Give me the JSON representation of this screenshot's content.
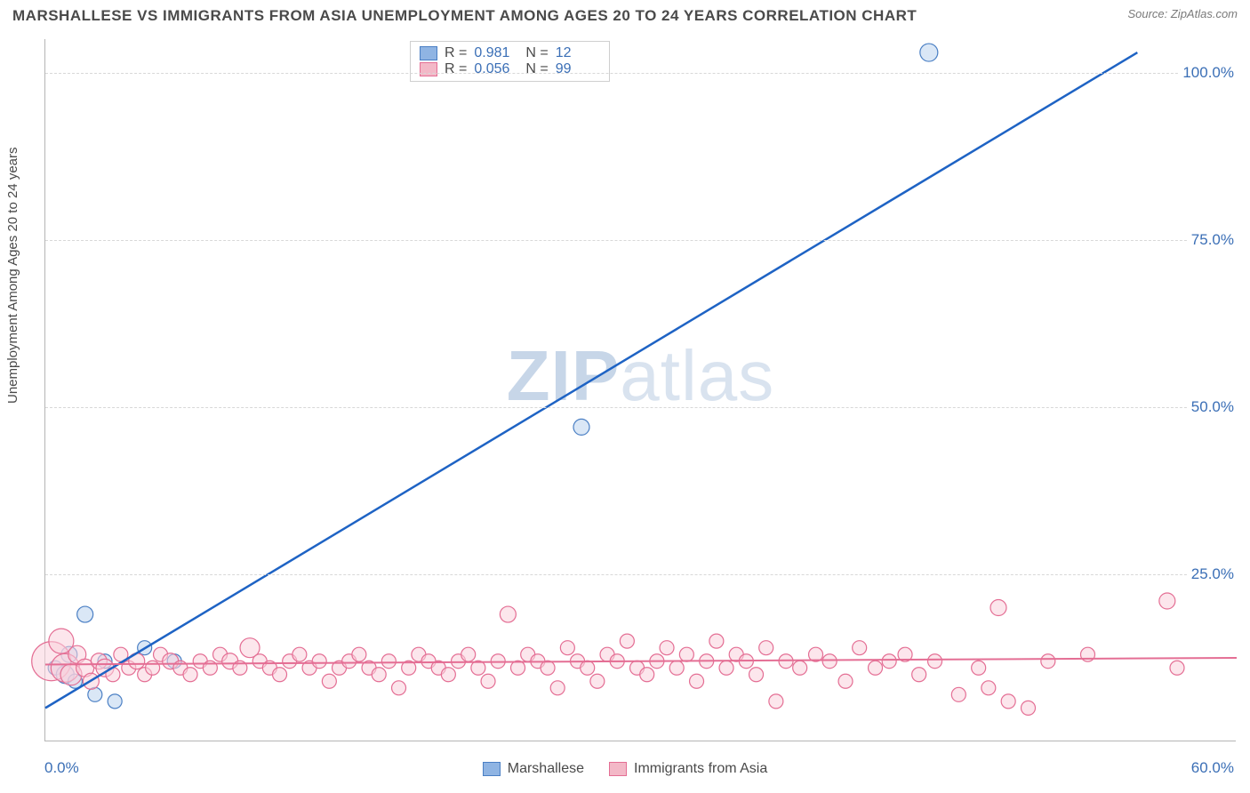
{
  "header": {
    "title": "MARSHALLESE VS IMMIGRANTS FROM ASIA UNEMPLOYMENT AMONG AGES 20 TO 24 YEARS CORRELATION CHART",
    "source": "Source: ZipAtlas.com"
  },
  "chart": {
    "type": "scatter",
    "ylabel": "Unemployment Among Ages 20 to 24 years",
    "background_color": "#ffffff",
    "grid_color": "#d8d8d8",
    "axis_color": "#b5b5b5",
    "tick_color": "#3b6fb6",
    "tick_fontsize": 17,
    "label_fontsize": 15,
    "xlim": [
      0,
      60
    ],
    "ylim": [
      0,
      105
    ],
    "xticks": [
      {
        "v": 0,
        "label": "0.0%"
      },
      {
        "v": 60,
        "label": "60.0%"
      }
    ],
    "yticks": [
      {
        "v": 25,
        "label": "25.0%"
      },
      {
        "v": 50,
        "label": "50.0%"
      },
      {
        "v": 75,
        "label": "75.0%"
      },
      {
        "v": 100,
        "label": "100.0%"
      }
    ],
    "watermark": {
      "prefix": "ZIP",
      "suffix": "atlas"
    },
    "stat_box": {
      "rows": [
        {
          "swatch": "#8fb4e3",
          "border": "#4a7fc4",
          "r_label": "R =",
          "r": "0.981",
          "n_label": "N =",
          "n": "12"
        },
        {
          "swatch": "#f3b8c7",
          "border": "#e46e94",
          "r_label": "R =",
          "r": "0.056",
          "n_label": "N =",
          "n": "99"
        }
      ]
    },
    "bottom_legend": [
      {
        "swatch": "#8fb4e3",
        "border": "#4a7fc4",
        "label": "Marshallese"
      },
      {
        "swatch": "#f3b8c7",
        "border": "#e46e94",
        "label": "Immigrants from Asia"
      }
    ],
    "series": [
      {
        "name": "Marshallese",
        "marker_fill": "#bcd3ef",
        "marker_stroke": "#4a7fc4",
        "line_color": "#1e63c4",
        "line_width": 2.5,
        "trend": {
          "x1": 0,
          "y1": 5,
          "x2": 55,
          "y2": 103
        },
        "points": [
          {
            "x": 0.5,
            "y": 11,
            "r": 8
          },
          {
            "x": 1.0,
            "y": 10,
            "r": 10
          },
          {
            "x": 1.2,
            "y": 13,
            "r": 9
          },
          {
            "x": 1.5,
            "y": 9,
            "r": 8
          },
          {
            "x": 2.0,
            "y": 19,
            "r": 9
          },
          {
            "x": 2.5,
            "y": 7,
            "r": 8
          },
          {
            "x": 3.0,
            "y": 12,
            "r": 8
          },
          {
            "x": 3.5,
            "y": 6,
            "r": 8
          },
          {
            "x": 5.0,
            "y": 14,
            "r": 8
          },
          {
            "x": 6.5,
            "y": 12,
            "r": 8
          },
          {
            "x": 27.0,
            "y": 47,
            "r": 9
          },
          {
            "x": 44.5,
            "y": 103,
            "r": 10
          }
        ]
      },
      {
        "name": "Immigrants from Asia",
        "marker_fill": "#f9d2dc",
        "marker_stroke": "#e46e94",
        "line_color": "#e46e94",
        "line_width": 2,
        "trend": {
          "x1": 0,
          "y1": 11.5,
          "x2": 60,
          "y2": 12.5
        },
        "points": [
          {
            "x": 0.3,
            "y": 12,
            "r": 22
          },
          {
            "x": 0.8,
            "y": 15,
            "r": 14
          },
          {
            "x": 1.0,
            "y": 11,
            "r": 16
          },
          {
            "x": 1.3,
            "y": 10,
            "r": 12
          },
          {
            "x": 1.6,
            "y": 13,
            "r": 10
          },
          {
            "x": 2.0,
            "y": 11,
            "r": 10
          },
          {
            "x": 2.3,
            "y": 9,
            "r": 9
          },
          {
            "x": 2.7,
            "y": 12,
            "r": 9
          },
          {
            "x": 3.0,
            "y": 11,
            "r": 10
          },
          {
            "x": 3.4,
            "y": 10,
            "r": 8
          },
          {
            "x": 3.8,
            "y": 13,
            "r": 8
          },
          {
            "x": 4.2,
            "y": 11,
            "r": 8
          },
          {
            "x": 4.6,
            "y": 12,
            "r": 9
          },
          {
            "x": 5.0,
            "y": 10,
            "r": 8
          },
          {
            "x": 5.4,
            "y": 11,
            "r": 8
          },
          {
            "x": 5.8,
            "y": 13,
            "r": 8
          },
          {
            "x": 6.3,
            "y": 12,
            "r": 9
          },
          {
            "x": 6.8,
            "y": 11,
            "r": 8
          },
          {
            "x": 7.3,
            "y": 10,
            "r": 8
          },
          {
            "x": 7.8,
            "y": 12,
            "r": 8
          },
          {
            "x": 8.3,
            "y": 11,
            "r": 8
          },
          {
            "x": 8.8,
            "y": 13,
            "r": 8
          },
          {
            "x": 9.3,
            "y": 12,
            "r": 9
          },
          {
            "x": 9.8,
            "y": 11,
            "r": 8
          },
          {
            "x": 10.3,
            "y": 14,
            "r": 11
          },
          {
            "x": 10.8,
            "y": 12,
            "r": 8
          },
          {
            "x": 11.3,
            "y": 11,
            "r": 8
          },
          {
            "x": 11.8,
            "y": 10,
            "r": 8
          },
          {
            "x": 12.3,
            "y": 12,
            "r": 8
          },
          {
            "x": 12.8,
            "y": 13,
            "r": 8
          },
          {
            "x": 13.3,
            "y": 11,
            "r": 8
          },
          {
            "x": 13.8,
            "y": 12,
            "r": 8
          },
          {
            "x": 14.3,
            "y": 9,
            "r": 8
          },
          {
            "x": 14.8,
            "y": 11,
            "r": 8
          },
          {
            "x": 15.3,
            "y": 12,
            "r": 8
          },
          {
            "x": 15.8,
            "y": 13,
            "r": 8
          },
          {
            "x": 16.3,
            "y": 11,
            "r": 8
          },
          {
            "x": 16.8,
            "y": 10,
            "r": 8
          },
          {
            "x": 17.3,
            "y": 12,
            "r": 8
          },
          {
            "x": 17.8,
            "y": 8,
            "r": 8
          },
          {
            "x": 18.3,
            "y": 11,
            "r": 8
          },
          {
            "x": 18.8,
            "y": 13,
            "r": 8
          },
          {
            "x": 19.3,
            "y": 12,
            "r": 8
          },
          {
            "x": 19.8,
            "y": 11,
            "r": 8
          },
          {
            "x": 20.3,
            "y": 10,
            "r": 8
          },
          {
            "x": 20.8,
            "y": 12,
            "r": 8
          },
          {
            "x": 21.3,
            "y": 13,
            "r": 8
          },
          {
            "x": 21.8,
            "y": 11,
            "r": 8
          },
          {
            "x": 22.3,
            "y": 9,
            "r": 8
          },
          {
            "x": 22.8,
            "y": 12,
            "r": 8
          },
          {
            "x": 23.3,
            "y": 19,
            "r": 9
          },
          {
            "x": 23.8,
            "y": 11,
            "r": 8
          },
          {
            "x": 24.3,
            "y": 13,
            "r": 8
          },
          {
            "x": 24.8,
            "y": 12,
            "r": 8
          },
          {
            "x": 25.3,
            "y": 11,
            "r": 8
          },
          {
            "x": 25.8,
            "y": 8,
            "r": 8
          },
          {
            "x": 26.3,
            "y": 14,
            "r": 8
          },
          {
            "x": 26.8,
            "y": 12,
            "r": 8
          },
          {
            "x": 27.3,
            "y": 11,
            "r": 8
          },
          {
            "x": 27.8,
            "y": 9,
            "r": 8
          },
          {
            "x": 28.3,
            "y": 13,
            "r": 8
          },
          {
            "x": 28.8,
            "y": 12,
            "r": 8
          },
          {
            "x": 29.3,
            "y": 15,
            "r": 8
          },
          {
            "x": 29.8,
            "y": 11,
            "r": 8
          },
          {
            "x": 30.3,
            "y": 10,
            "r": 8
          },
          {
            "x": 30.8,
            "y": 12,
            "r": 8
          },
          {
            "x": 31.3,
            "y": 14,
            "r": 8
          },
          {
            "x": 31.8,
            "y": 11,
            "r": 8
          },
          {
            "x": 32.3,
            "y": 13,
            "r": 8
          },
          {
            "x": 32.8,
            "y": 9,
            "r": 8
          },
          {
            "x": 33.3,
            "y": 12,
            "r": 8
          },
          {
            "x": 33.8,
            "y": 15,
            "r": 8
          },
          {
            "x": 34.3,
            "y": 11,
            "r": 8
          },
          {
            "x": 34.8,
            "y": 13,
            "r": 8
          },
          {
            "x": 35.3,
            "y": 12,
            "r": 8
          },
          {
            "x": 35.8,
            "y": 10,
            "r": 8
          },
          {
            "x": 36.3,
            "y": 14,
            "r": 8
          },
          {
            "x": 36.8,
            "y": 6,
            "r": 8
          },
          {
            "x": 37.3,
            "y": 12,
            "r": 8
          },
          {
            "x": 38.0,
            "y": 11,
            "r": 8
          },
          {
            "x": 38.8,
            "y": 13,
            "r": 8
          },
          {
            "x": 39.5,
            "y": 12,
            "r": 8
          },
          {
            "x": 40.3,
            "y": 9,
            "r": 8
          },
          {
            "x": 41.0,
            "y": 14,
            "r": 8
          },
          {
            "x": 41.8,
            "y": 11,
            "r": 8
          },
          {
            "x": 42.5,
            "y": 12,
            "r": 8
          },
          {
            "x": 43.3,
            "y": 13,
            "r": 8
          },
          {
            "x": 44.0,
            "y": 10,
            "r": 8
          },
          {
            "x": 44.8,
            "y": 12,
            "r": 8
          },
          {
            "x": 46.0,
            "y": 7,
            "r": 8
          },
          {
            "x": 47.0,
            "y": 11,
            "r": 8
          },
          {
            "x": 47.5,
            "y": 8,
            "r": 8
          },
          {
            "x": 48.0,
            "y": 20,
            "r": 9
          },
          {
            "x": 48.5,
            "y": 6,
            "r": 8
          },
          {
            "x": 49.5,
            "y": 5,
            "r": 8
          },
          {
            "x": 50.5,
            "y": 12,
            "r": 8
          },
          {
            "x": 52.5,
            "y": 13,
            "r": 8
          },
          {
            "x": 56.5,
            "y": 21,
            "r": 9
          },
          {
            "x": 57.0,
            "y": 11,
            "r": 8
          }
        ]
      }
    ]
  }
}
